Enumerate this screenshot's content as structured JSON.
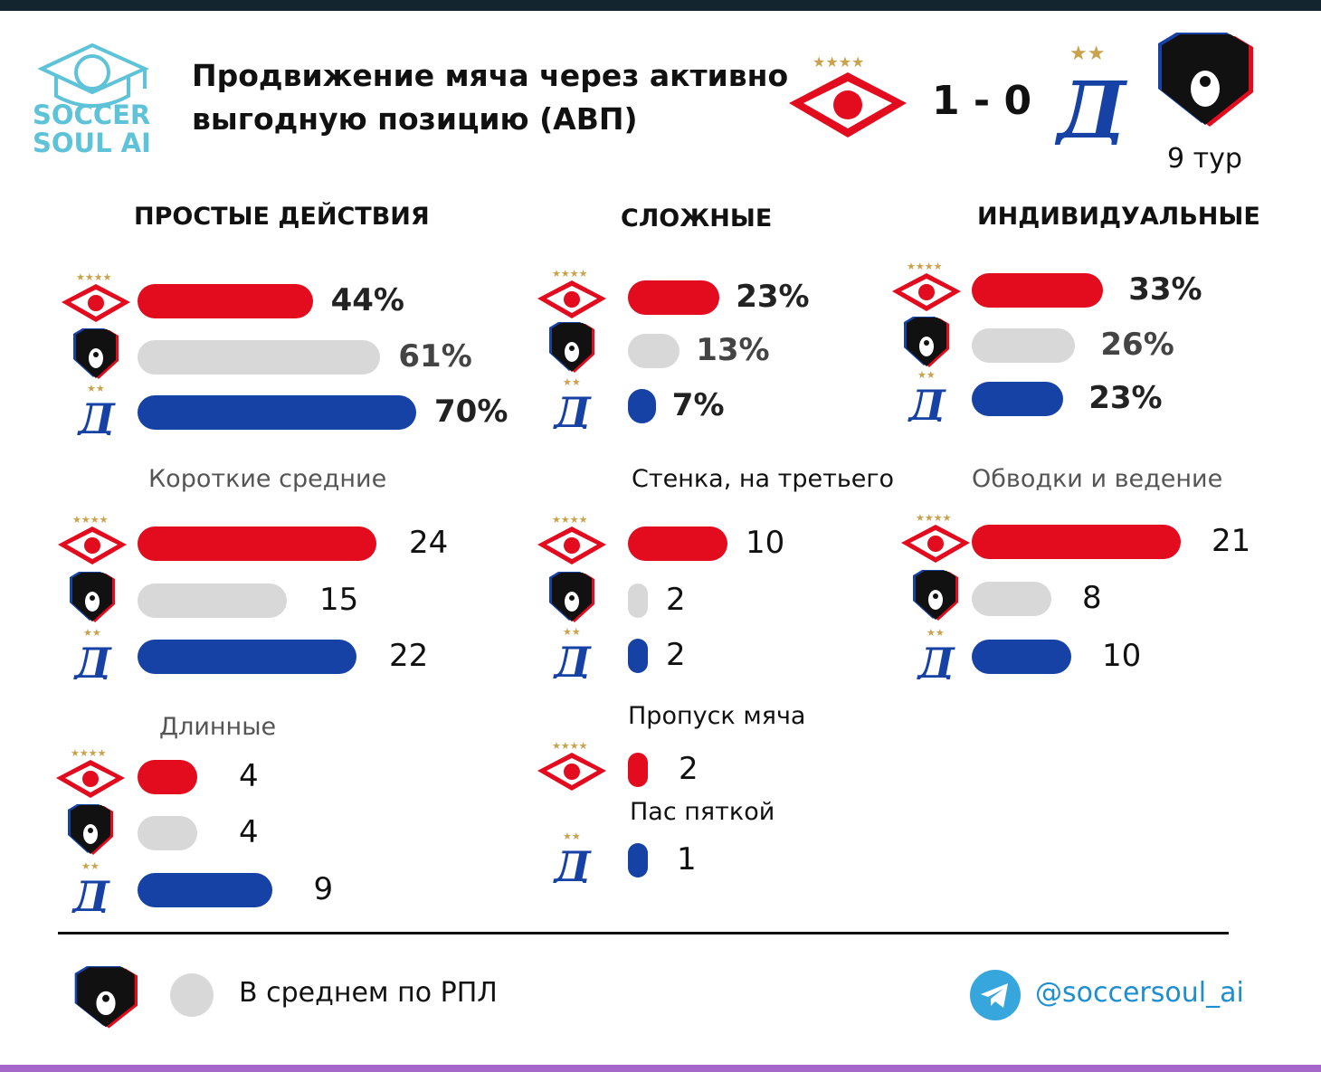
{
  "brand": {
    "name_line1": "SOCCER",
    "name_line2": "SOUL AI"
  },
  "header": {
    "title": "Продвижение мяча через активно выгодную позицию (АВП)",
    "score": "1 - 0",
    "round": "9 тур"
  },
  "colors": {
    "spartak": "#e30b1e",
    "league_avg": "#d8d8d8",
    "dynamo": "#1742a5"
  },
  "icons": {
    "spartak": "spartak-logo-icon",
    "rpl": "rpl-bear-icon",
    "dynamo": "dynamo-logo-icon",
    "telegram": "telegram-icon"
  },
  "legend": {
    "text": "В среднем по РПЛ"
  },
  "footer": {
    "handle": "@soccersoul_ai"
  },
  "chart_data": [
    {
      "type": "bar",
      "title": "ПРОСТЫЕ ДЕЙСТВИЯ",
      "series": [
        {
          "name": "Спартак",
          "values": [
            44
          ],
          "label": "44%"
        },
        {
          "name": "РПЛ",
          "values": [
            61
          ],
          "label": "61%"
        },
        {
          "name": "Динамо",
          "values": [
            70
          ],
          "label": "70%"
        }
      ]
    },
    {
      "type": "bar",
      "title": "СЛОЖНЫЕ",
      "series": [
        {
          "values": [
            23
          ],
          "label": "23%"
        },
        {
          "values": [
            13
          ],
          "label": "13%"
        },
        {
          "values": [
            7
          ],
          "label": "7%"
        }
      ]
    },
    {
      "type": "bar",
      "title": "ИНДИВИДУАЛЬНЫЕ",
      "series": [
        {
          "values": [
            33
          ],
          "label": "33%"
        },
        {
          "values": [
            26
          ],
          "label": "26%"
        },
        {
          "values": [
            23
          ],
          "label": "23%"
        }
      ]
    },
    {
      "type": "bar",
      "title": "Короткие  средние",
      "series": [
        {
          "values": [
            24
          ],
          "label": "24"
        },
        {
          "values": [
            15
          ],
          "label": "15"
        },
        {
          "values": [
            22
          ],
          "label": "22"
        }
      ]
    },
    {
      "type": "bar",
      "title": "Стенка, на третьего",
      "series": [
        {
          "values": [
            10
          ],
          "label": "10"
        },
        {
          "values": [
            2
          ],
          "label": "2"
        },
        {
          "values": [
            2
          ],
          "label": "2"
        }
      ]
    },
    {
      "type": "bar",
      "title": "Обводки  и ведение",
      "series": [
        {
          "values": [
            21
          ],
          "label": "21"
        },
        {
          "values": [
            8
          ],
          "label": "8"
        },
        {
          "values": [
            10
          ],
          "label": "10"
        }
      ]
    },
    {
      "type": "bar",
      "title": "Длинные",
      "series": [
        {
          "values": [
            4
          ],
          "label": "4"
        },
        {
          "values": [
            4
          ],
          "label": "4"
        },
        {
          "values": [
            9
          ],
          "label": "9"
        }
      ]
    },
    {
      "type": "bar",
      "title": "Пропуск мяча",
      "series": [
        {
          "values": [
            2
          ],
          "label": "2"
        }
      ]
    },
    {
      "type": "bar",
      "title": "Пас  пяткой",
      "series": [
        {
          "values": [
            1
          ],
          "label": "1"
        }
      ]
    }
  ]
}
